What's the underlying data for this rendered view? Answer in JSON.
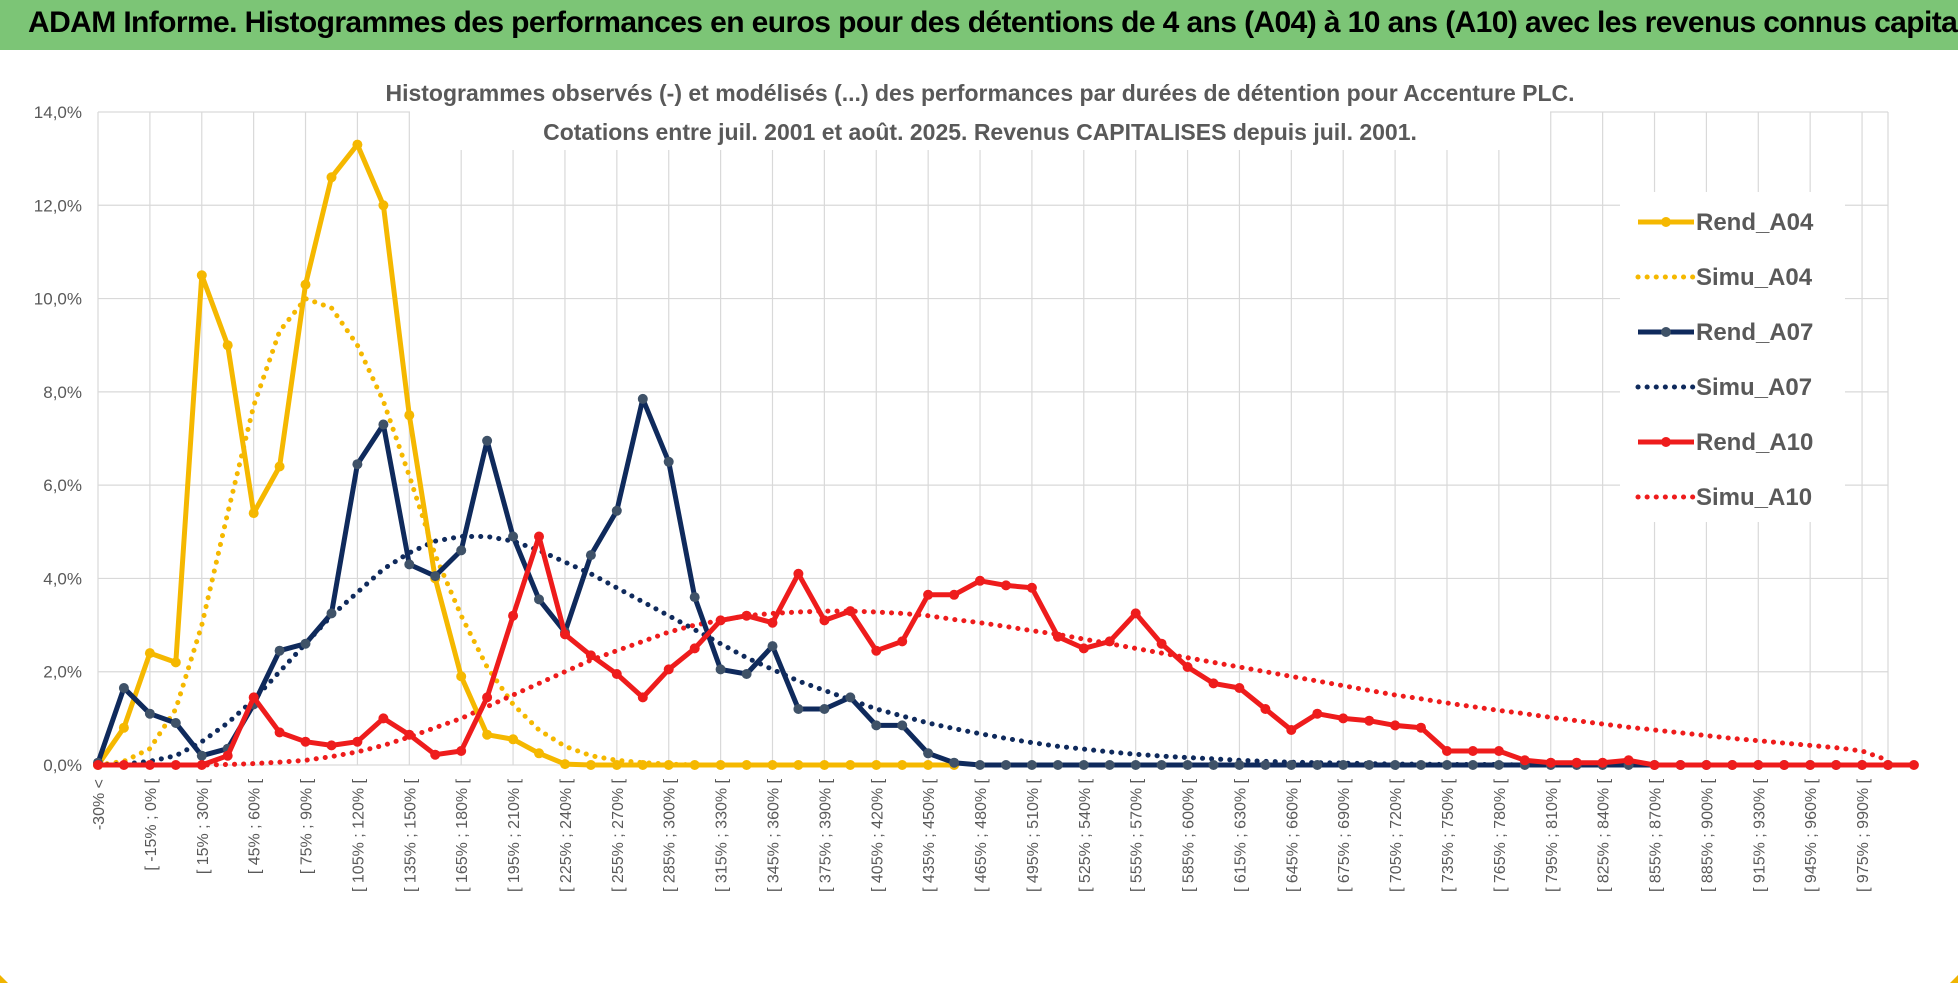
{
  "banner": {
    "title": "ADAM Informe. Histogrammes des performances en euros pour des détentions de 4 ans (A04) à 10 ans (A10) avec les revenus connus capitalisés",
    "color": "#7cc576"
  },
  "chart_data": {
    "type": "line",
    "title_line1": "Histogrammes observés (-) et modélisés (...) des performances par durées de détention pour Accenture PLC.",
    "title_line2": "Cotations entre juil. 2001 et août. 2025. Revenus CAPITALISES depuis juil. 2001.",
    "ylim": [
      0,
      14
    ],
    "yticks": [
      "0,0%",
      "2,0%",
      "4,0%",
      "6,0%",
      "8,0%",
      "10,0%",
      "12,0%",
      "14,0%"
    ],
    "grid": true,
    "legend_position": "right",
    "x_labels": [
      "-30% <",
      "[ -15% ; 0% [",
      "[ 15% ; 30% [",
      "[ 45% ; 60% [",
      "[ 75% ; 90% [",
      "[ 105% ; 120% [",
      "[ 135% ; 150% [",
      "[ 165% ; 180% [",
      "[ 195% ; 210% [",
      "[ 225% ; 240% [",
      "[ 255% ; 270% [",
      "[ 285% ; 300% [",
      "[ 315% ; 330% [",
      "[ 345% ; 360% [",
      "[ 375% ; 390% [",
      "[ 405% ; 420% [",
      "[ 435% ; 450% [",
      "[ 465% ; 480% [",
      "[ 495% ; 510% [",
      "[ 525% ; 540% [",
      "[ 555% ; 570% [",
      "[ 585% ; 600% [",
      "[ 615% ; 630% [",
      "[ 645% ; 660% [",
      "[ 675% ; 690% [",
      "[ 705% ; 720% [",
      "[ 735% ; 750% [",
      "[ 765% ; 780% [",
      "[ 795% ; 810% [",
      "[ 825% ; 840% [",
      "[ 855% ; 870% [",
      "[ 885% ; 900% [",
      "[ 915% ; 930% [",
      "[ 945% ; 960% [",
      "[ 975% ; 990% ["
    ],
    "series": [
      {
        "name": "Rend_A04",
        "style": "solid",
        "color": "#f5b800",
        "values": [
          0,
          0.8,
          2.4,
          2.2,
          10.5,
          9.0,
          5.4,
          6.4,
          10.3,
          12.6,
          13.3,
          12.0,
          7.5,
          4.0,
          1.9,
          0.65,
          0.55,
          0.25,
          0.02,
          0,
          0,
          0,
          0,
          0,
          0,
          0,
          0,
          0,
          0,
          0,
          0,
          0,
          0,
          0
        ]
      },
      {
        "name": "Simu_A04",
        "style": "dotted",
        "color": "#f5b800",
        "values": [
          0,
          0.08,
          0.35,
          1.2,
          3.0,
          5.4,
          7.7,
          9.3,
          10.0,
          9.8,
          9.0,
          7.8,
          6.2,
          4.5,
          3.2,
          2.1,
          1.3,
          0.75,
          0.4,
          0.2,
          0.1,
          0.05,
          0.02,
          0,
          0,
          0,
          0,
          0,
          0,
          0,
          0,
          0,
          0,
          0
        ]
      },
      {
        "name": "Rend_A07",
        "style": "solid",
        "color": "#0f2a5c",
        "values": [
          0.05,
          1.65,
          1.1,
          0.9,
          0.2,
          0.35,
          1.3,
          2.45,
          2.6,
          3.25,
          6.45,
          7.3,
          4.3,
          4.05,
          4.6,
          6.95,
          4.9,
          3.55,
          2.85,
          4.5,
          5.45,
          7.85,
          6.5,
          3.6,
          2.05,
          1.95,
          2.55,
          1.2,
          1.2,
          1.45,
          0.85,
          0.85,
          0.25,
          0.05,
          0,
          0,
          0,
          0,
          0,
          0,
          0,
          0,
          0,
          0,
          0,
          0,
          0,
          0,
          0,
          0,
          0,
          0,
          0,
          0,
          0,
          0,
          0,
          0,
          0,
          0,
          0,
          0,
          0,
          0,
          0,
          0,
          0,
          0,
          0,
          0
        ]
      },
      {
        "name": "Simu_A07",
        "style": "dotted",
        "color": "#0f2a5c",
        "values": [
          0,
          0.02,
          0.08,
          0.2,
          0.5,
          0.9,
          1.4,
          2.0,
          2.6,
          3.2,
          3.7,
          4.2,
          4.55,
          4.8,
          4.9,
          4.9,
          4.8,
          4.6,
          4.35,
          4.1,
          3.8,
          3.5,
          3.2,
          2.9,
          2.6,
          2.3,
          2.05,
          1.8,
          1.6,
          1.4,
          1.2,
          1.05,
          0.9,
          0.78,
          0.67,
          0.57,
          0.48,
          0.4,
          0.34,
          0.28,
          0.23,
          0.19,
          0.16,
          0.13,
          0.1,
          0.08,
          0.06,
          0.05,
          0.04,
          0.03,
          0.02,
          0.02,
          0.01,
          0.01,
          0.01,
          0,
          0,
          0,
          0,
          0,
          0,
          0,
          0,
          0,
          0,
          0,
          0,
          0,
          0,
          0
        ]
      },
      {
        "name": "Rend_A10",
        "style": "solid",
        "color": "#ee1c1c",
        "values": [
          0,
          0,
          0,
          0,
          0,
          0.2,
          1.45,
          0.7,
          0.5,
          0.42,
          0.5,
          1.0,
          0.65,
          0.22,
          0.3,
          1.45,
          3.2,
          4.9,
          2.8,
          2.35,
          1.95,
          1.45,
          2.05,
          2.5,
          3.1,
          3.2,
          3.05,
          4.1,
          3.1,
          3.3,
          2.45,
          2.65,
          3.65,
          3.65,
          3.95,
          3.85,
          3.8,
          2.75,
          2.5,
          2.65,
          3.25,
          2.6,
          2.1,
          1.75,
          1.65,
          1.2,
          0.75,
          1.1,
          1.0,
          0.95,
          0.85,
          0.8,
          0.3,
          0.3,
          0.3,
          0.1,
          0.05,
          0.05,
          0.05,
          0.1,
          0,
          0,
          0,
          0,
          0,
          0,
          0,
          0,
          0,
          0,
          0
        ]
      },
      {
        "name": "Simu_A10",
        "style": "dotted",
        "color": "#ee1c1c",
        "values": [
          0,
          0,
          0,
          0,
          0,
          0.01,
          0.03,
          0.06,
          0.1,
          0.18,
          0.28,
          0.42,
          0.6,
          0.8,
          1.0,
          1.25,
          1.5,
          1.75,
          2.0,
          2.25,
          2.45,
          2.65,
          2.85,
          3.0,
          3.1,
          3.2,
          3.25,
          3.28,
          3.3,
          3.3,
          3.28,
          3.25,
          3.2,
          3.12,
          3.05,
          2.97,
          2.88,
          2.8,
          2.7,
          2.6,
          2.5,
          2.4,
          2.3,
          2.2,
          2.1,
          2.0,
          1.9,
          1.8,
          1.7,
          1.6,
          1.5,
          1.42,
          1.33,
          1.25,
          1.17,
          1.1,
          1.02,
          0.95,
          0.88,
          0.81,
          0.75,
          0.69,
          0.63,
          0.57,
          0.52,
          0.47,
          0.42,
          0.37,
          0.3,
          0.1
        ]
      }
    ]
  }
}
